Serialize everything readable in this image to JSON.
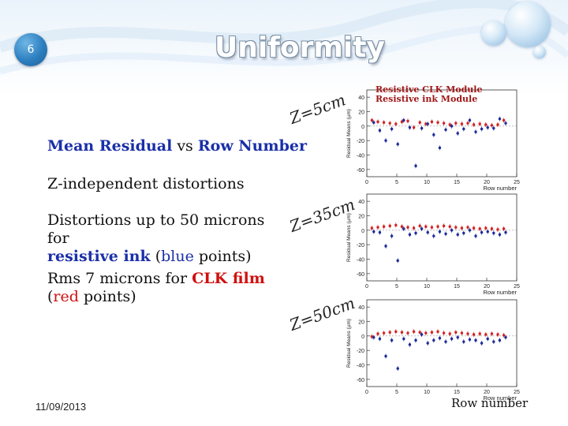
{
  "header": {
    "slide_number": "6",
    "title": "Uniformity"
  },
  "bullets": {
    "mean_residual_a": "Mean Residual",
    "mean_residual_b": " vs ",
    "mean_residual_c": "Row Number",
    "z_independent": "Z-independent distortions",
    "distortions_a": "Distortions up to 50 microns for",
    "distortions_b": "resistive ink",
    "distortions_c": " (",
    "distortions_d": "blue",
    "distortions_e": " points)",
    "rms_a": "Rms 7 microns for ",
    "rms_b": "CLK film",
    "rms_c": "(",
    "rms_d": "red",
    "rms_e": " points)"
  },
  "z_labels": [
    "Z=5cm",
    "Z=35cm",
    "Z=50cm"
  ],
  "legend": {
    "line1": "Resistive CLK Module",
    "line2": "Resistive ink Module"
  },
  "footer": {
    "date": "11/09/2013",
    "row_number_caption": "Row number"
  },
  "colors": {
    "clk": "#d42020",
    "ink": "#1b2a9a",
    "title_outline": "#7a8fa5",
    "bullet_circle": "#2d7fc0"
  },
  "chart_data": [
    {
      "type": "scatter",
      "title": "Z=5cm",
      "xlabel": "Row number",
      "ylabel": "Residual Means (µm)",
      "xlim": [
        0,
        25
      ],
      "ylim": [
        -70,
        50
      ],
      "yticks": [
        40,
        20,
        0,
        -20,
        -40,
        -60
      ],
      "xticks": [
        0,
        5,
        10,
        15,
        20,
        25
      ],
      "series": [
        {
          "name": "Resistive CLK Module",
          "x": [
            1,
            2,
            3,
            4,
            5,
            6,
            7,
            8,
            9,
            10,
            11,
            12,
            13,
            14,
            15,
            16,
            17,
            18,
            19,
            20,
            21,
            22,
            23
          ],
          "values": [
            8,
            6,
            5,
            4,
            3,
            6,
            7,
            -2,
            5,
            3,
            6,
            5,
            4,
            2,
            4,
            3,
            4,
            2,
            3,
            2,
            1,
            2,
            8
          ]
        },
        {
          "name": "Resistive ink Module",
          "x": [
            1,
            2,
            3,
            4,
            5,
            6,
            7,
            8,
            9,
            10,
            11,
            12,
            13,
            14,
            15,
            16,
            17,
            18,
            19,
            20,
            21,
            22,
            23
          ],
          "values": [
            5,
            -6,
            -20,
            -4,
            -25,
            8,
            -2,
            -55,
            -3,
            3,
            -12,
            -30,
            -5,
            0,
            -10,
            -4,
            8,
            -8,
            -4,
            -2,
            -3,
            10,
            4
          ]
        }
      ]
    },
    {
      "type": "scatter",
      "title": "Z=35cm",
      "xlabel": "Row number",
      "ylabel": "Residual Means (µm)",
      "xlim": [
        0,
        25
      ],
      "ylim": [
        -70,
        50
      ],
      "yticks": [
        40,
        20,
        0,
        -20,
        -40,
        -60
      ],
      "xticks": [
        0,
        5,
        10,
        15,
        20,
        25
      ],
      "series": [
        {
          "name": "Resistive CLK Module",
          "x": [
            1,
            2,
            3,
            4,
            5,
            6,
            7,
            8,
            9,
            10,
            11,
            12,
            13,
            14,
            15,
            16,
            17,
            18,
            19,
            20,
            21,
            22,
            23
          ],
          "values": [
            3,
            4,
            5,
            6,
            7,
            5,
            4,
            3,
            6,
            5,
            4,
            5,
            6,
            5,
            4,
            3,
            4,
            3,
            2,
            3,
            2,
            1,
            2
          ]
        },
        {
          "name": "Resistive ink Module",
          "x": [
            1,
            2,
            3,
            4,
            5,
            6,
            7,
            8,
            9,
            10,
            11,
            12,
            13,
            14,
            15,
            16,
            17,
            18,
            19,
            20,
            21,
            22,
            23
          ],
          "values": [
            -2,
            -3,
            -22,
            -8,
            -42,
            2,
            -6,
            -4,
            2,
            -3,
            -8,
            -2,
            -5,
            0,
            -6,
            -4,
            0,
            -8,
            -3,
            -2,
            -4,
            -6,
            -3
          ]
        }
      ]
    },
    {
      "type": "scatter",
      "title": "Z=50cm",
      "xlabel": "Row number",
      "ylabel": "Residual Means (µm)",
      "xlim": [
        0,
        25
      ],
      "ylim": [
        -70,
        50
      ],
      "yticks": [
        40,
        20,
        0,
        -20,
        -40,
        -60
      ],
      "xticks": [
        0,
        5,
        10,
        15,
        20,
        25
      ],
      "series": [
        {
          "name": "Resistive CLK Module",
          "x": [
            1,
            2,
            3,
            4,
            5,
            6,
            7,
            8,
            9,
            10,
            11,
            12,
            13,
            14,
            15,
            16,
            17,
            18,
            19,
            20,
            21,
            22,
            23
          ],
          "values": [
            -1,
            3,
            4,
            5,
            6,
            5,
            4,
            6,
            5,
            4,
            5,
            6,
            4,
            3,
            5,
            4,
            3,
            2,
            3,
            2,
            3,
            2,
            1
          ]
        },
        {
          "name": "Resistive ink Module",
          "x": [
            1,
            2,
            3,
            4,
            5,
            6,
            7,
            8,
            9,
            10,
            11,
            12,
            13,
            14,
            15,
            16,
            17,
            18,
            19,
            20,
            21,
            22,
            23
          ],
          "values": [
            -2,
            -4,
            -28,
            -6,
            -45,
            -4,
            -12,
            -6,
            2,
            -10,
            -6,
            -3,
            -8,
            -4,
            -2,
            -8,
            -5,
            -6,
            -10,
            -4,
            -8,
            -6,
            -2
          ]
        }
      ]
    }
  ]
}
